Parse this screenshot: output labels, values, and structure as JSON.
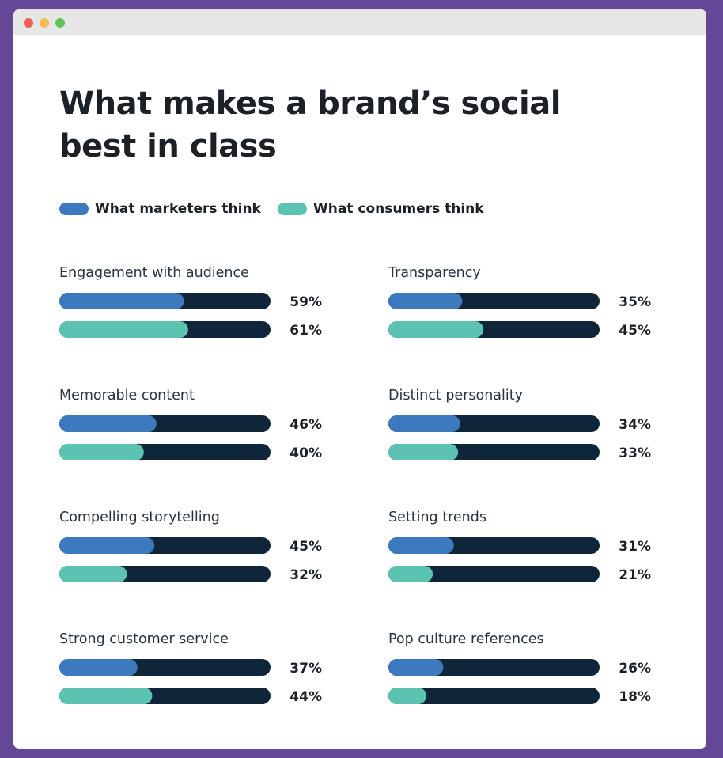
{
  "colors": {
    "marketers": "#3d79be",
    "consumers": "#5cc3b3",
    "track": "#0f2539",
    "text": "#1b2127"
  },
  "title_line1": "What makes a brand’s social",
  "title_line2": "best in class",
  "legend": {
    "marketers": "What marketers think",
    "consumers": "What consumers think"
  },
  "chart_data": {
    "type": "bar",
    "title": "What makes a brand’s social best in class",
    "xlim": [
      0,
      100
    ],
    "series": [
      {
        "name": "What marketers think",
        "key": "marketers"
      },
      {
        "name": "What consumers think",
        "key": "consumers"
      }
    ],
    "categories": [
      {
        "label": "Engagement with audience",
        "marketers": 59,
        "consumers": 61,
        "marketers_label": "59%",
        "consumers_label": "61%"
      },
      {
        "label": "Memorable content",
        "marketers": 46,
        "consumers": 40,
        "marketers_label": "46%",
        "consumers_label": "40%"
      },
      {
        "label": "Compelling storytelling",
        "marketers": 45,
        "consumers": 32,
        "marketers_label": "45%",
        "consumers_label": "32%"
      },
      {
        "label": "Strong customer service",
        "marketers": 37,
        "consumers": 44,
        "marketers_label": "37%",
        "consumers_label": "44%"
      },
      {
        "label": "Transparency",
        "marketers": 35,
        "consumers": 45,
        "marketers_label": "35%",
        "consumers_label": "45%"
      },
      {
        "label": "Distinct personality",
        "marketers": 34,
        "consumers": 33,
        "marketers_label": "34%",
        "consumers_label": "33%"
      },
      {
        "label": "Setting trends",
        "marketers": 31,
        "consumers": 21,
        "marketers_label": "31%",
        "consumers_label": "21%"
      },
      {
        "label": "Pop culture references",
        "marketers": 26,
        "consumers": 18,
        "marketers_label": "26%",
        "consumers_label": "18%"
      }
    ]
  }
}
